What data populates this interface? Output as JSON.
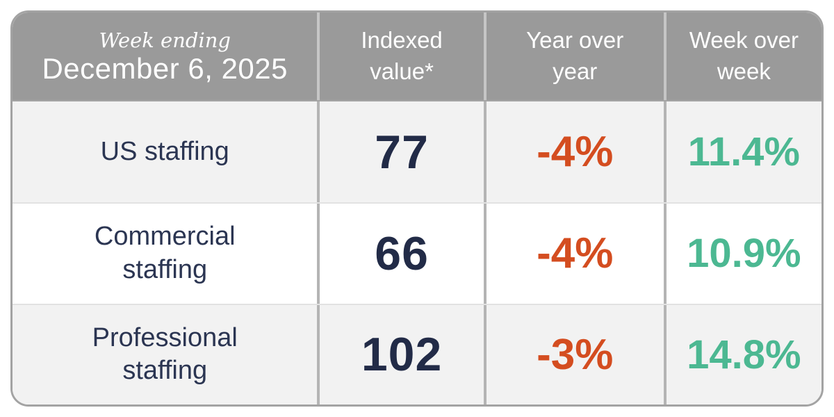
{
  "chart_data": {
    "type": "table",
    "title": "Week ending December 6, 2025",
    "columns": [
      "Week ending December 6, 2025",
      "Indexed value*",
      "Year over year",
      "Week over week"
    ],
    "rows": [
      [
        "US staffing",
        77,
        "-4%",
        "11.4%"
      ],
      [
        "Commercial staffing",
        66,
        "-4%",
        "10.9%"
      ],
      [
        "Professional staffing",
        102,
        "-3%",
        "14.8%"
      ]
    ]
  },
  "table": {
    "header": {
      "week_ending_label": "Week ending",
      "date": "December 6, 2025",
      "col_indexed": "Indexed value*",
      "col_yoy": "Year over year",
      "col_wow": "Week over week"
    },
    "rows": [
      {
        "label": "US staffing",
        "indexed_value": "77",
        "yoy": "-4%",
        "wow": "11.4%"
      },
      {
        "label": "Commercial staffing",
        "indexed_value": "66",
        "yoy": "-4%",
        "wow": "10.9%"
      },
      {
        "label": "Professional staffing",
        "indexed_value": "102",
        "yoy": "-3%",
        "wow": "14.8%"
      }
    ],
    "colors": {
      "header_bg": "#9a9a9a",
      "header_text": "#ffffff",
      "row_alt_bg": "#f2f2f2",
      "row_bg": "#ffffff",
      "label_navy": "#2b3552",
      "value_navy": "#222b47",
      "negative_orange": "#d44d20",
      "positive_green": "#4cb892",
      "border_gray": "#a3a3a3"
    }
  }
}
